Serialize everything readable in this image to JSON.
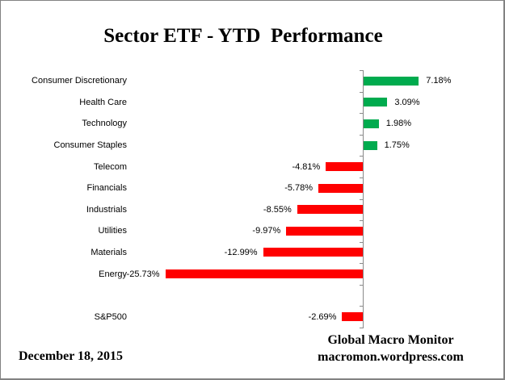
{
  "window": {
    "background": "#ffffff",
    "border_color": "#828282"
  },
  "header": {
    "title": "Sector ETF - YTD  Performance"
  },
  "chart_data": {
    "type": "bar",
    "orientation": "horizontal",
    "title": "Sector ETF - YTD  Performance",
    "categories": [
      "Consumer Discretionary",
      "Health Care",
      "Technology",
      "Consumer Staples",
      "Telecom",
      "Financials",
      "Industrials",
      "Utilities",
      "Materials",
      "Energy",
      "",
      "S&P500"
    ],
    "values": [
      7.18,
      3.09,
      1.98,
      1.75,
      -4.81,
      -5.78,
      -8.55,
      -9.97,
      -12.99,
      -25.73,
      null,
      -2.69
    ],
    "value_labels": [
      "7.18%",
      "3.09%",
      "1.98%",
      "1.75%",
      "-4.81%",
      "-5.78%",
      "-8.55%",
      "-9.97%",
      "-12.99%",
      "-25.73%",
      "",
      "-2.69%"
    ],
    "xlim": [
      -27,
      11
    ],
    "unit": "%",
    "grid": false,
    "legend": false,
    "value_label_position": "outside-end",
    "blank_row_index": 10,
    "colors": {
      "positive": "#00AB4E",
      "negative": "#FF0000",
      "axis": "#8A8A8A",
      "text": "#000000"
    }
  },
  "footer": {
    "date": "December 18, 2015",
    "source_line1": "Global Macro Monitor",
    "source_line2": "macromon.wordpress.com"
  }
}
